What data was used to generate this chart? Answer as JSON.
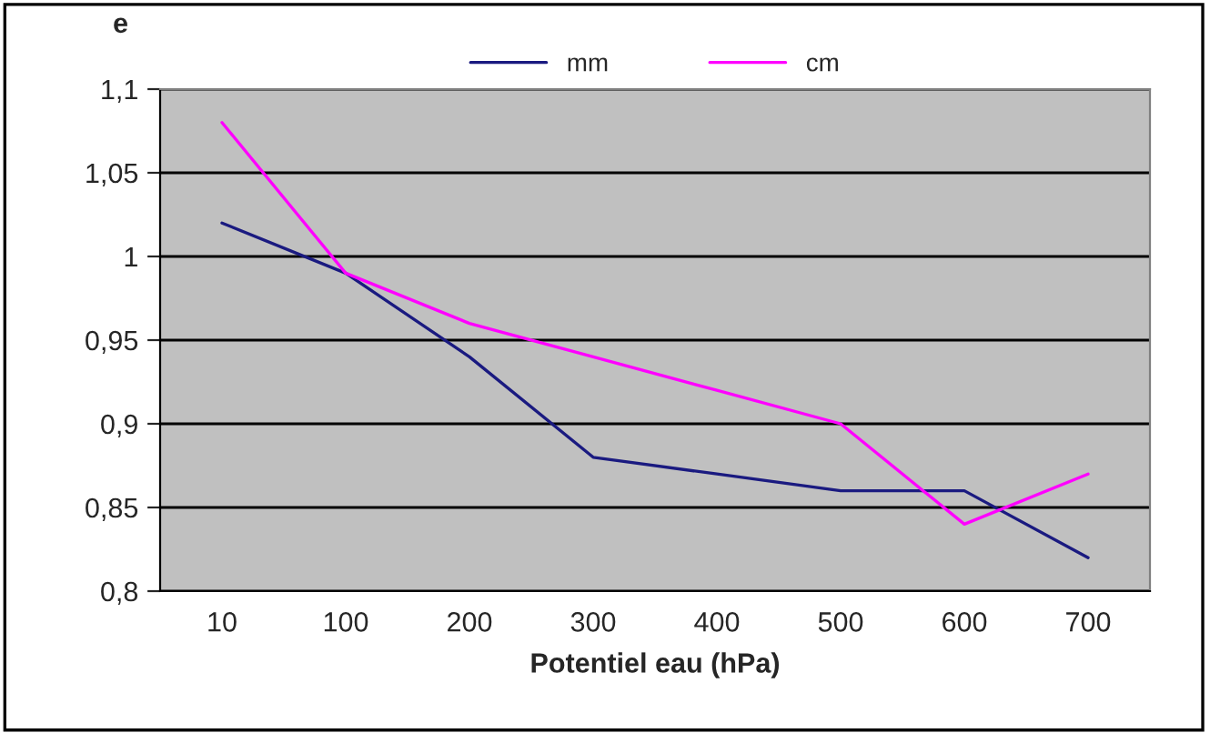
{
  "chart_data": {
    "type": "line",
    "xlabel": "Potentiel eau (hPa)",
    "ylabel": "e",
    "categories": [
      "10",
      "100",
      "200",
      "300",
      "400",
      "500",
      "600",
      "700"
    ],
    "series": [
      {
        "name": "mm",
        "color": "#1a1a80",
        "values": [
          1.02,
          0.99,
          0.94,
          0.88,
          0.87,
          0.86,
          0.86,
          0.82
        ]
      },
      {
        "name": "cm",
        "color": "#ff00ff",
        "values": [
          1.08,
          0.99,
          0.96,
          0.94,
          0.92,
          0.9,
          0.84,
          0.87
        ]
      }
    ],
    "ylim": [
      0.8,
      1.1
    ],
    "yticks": [
      {
        "value": 0.8,
        "label": "0,8"
      },
      {
        "value": 0.85,
        "label": "0,85"
      },
      {
        "value": 0.9,
        "label": "0,9"
      },
      {
        "value": 0.95,
        "label": "0,95"
      },
      {
        "value": 1.0,
        "label": "1"
      },
      {
        "value": 1.05,
        "label": "1,05"
      },
      {
        "value": 1.1,
        "label": "1,1"
      }
    ],
    "grid": "y",
    "legend": "top",
    "marker": "none",
    "line_style": "solid"
  }
}
